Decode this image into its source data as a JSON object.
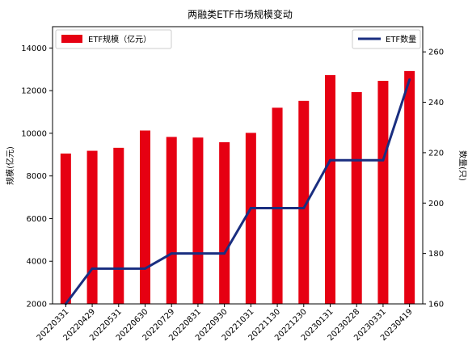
{
  "chart_data": {
    "type": "bar+line",
    "title": "两融类ETF市场规模变动",
    "categories": [
      "20220331",
      "20220429",
      "20220531",
      "20220630",
      "20220729",
      "20220831",
      "20220930",
      "20221031",
      "20221130",
      "20221230",
      "20230131",
      "20230228",
      "20230331",
      "20230419"
    ],
    "series": [
      {
        "name": "ETF规模（亿元）",
        "type": "bar",
        "axis": "left",
        "color": "#e60012",
        "values": [
          9050,
          9180,
          9320,
          10130,
          9830,
          9800,
          9580,
          10020,
          11200,
          11520,
          12730,
          11930,
          12460,
          12920
        ]
      },
      {
        "name": "ETF数量",
        "type": "line",
        "axis": "right",
        "color": "#1a2e80",
        "values": [
          160,
          174,
          174,
          174,
          180,
          180,
          180,
          198,
          198,
          198,
          217,
          217,
          217,
          249
        ]
      }
    ],
    "ylabel_left": "规模(亿元)",
    "ylabel_right": "数量(只)",
    "ylim_left": [
      2000,
      15000
    ],
    "ylim_right": [
      160,
      270
    ],
    "yticks_left": [
      "2000",
      "4000",
      "6000",
      "8000",
      "10000",
      "12000",
      "14000"
    ],
    "yticks_right": [
      "160",
      "180",
      "200",
      "220",
      "240",
      "260"
    ],
    "legend": {
      "bar_position": "top-left",
      "line_position": "top-right"
    },
    "grid": false
  }
}
